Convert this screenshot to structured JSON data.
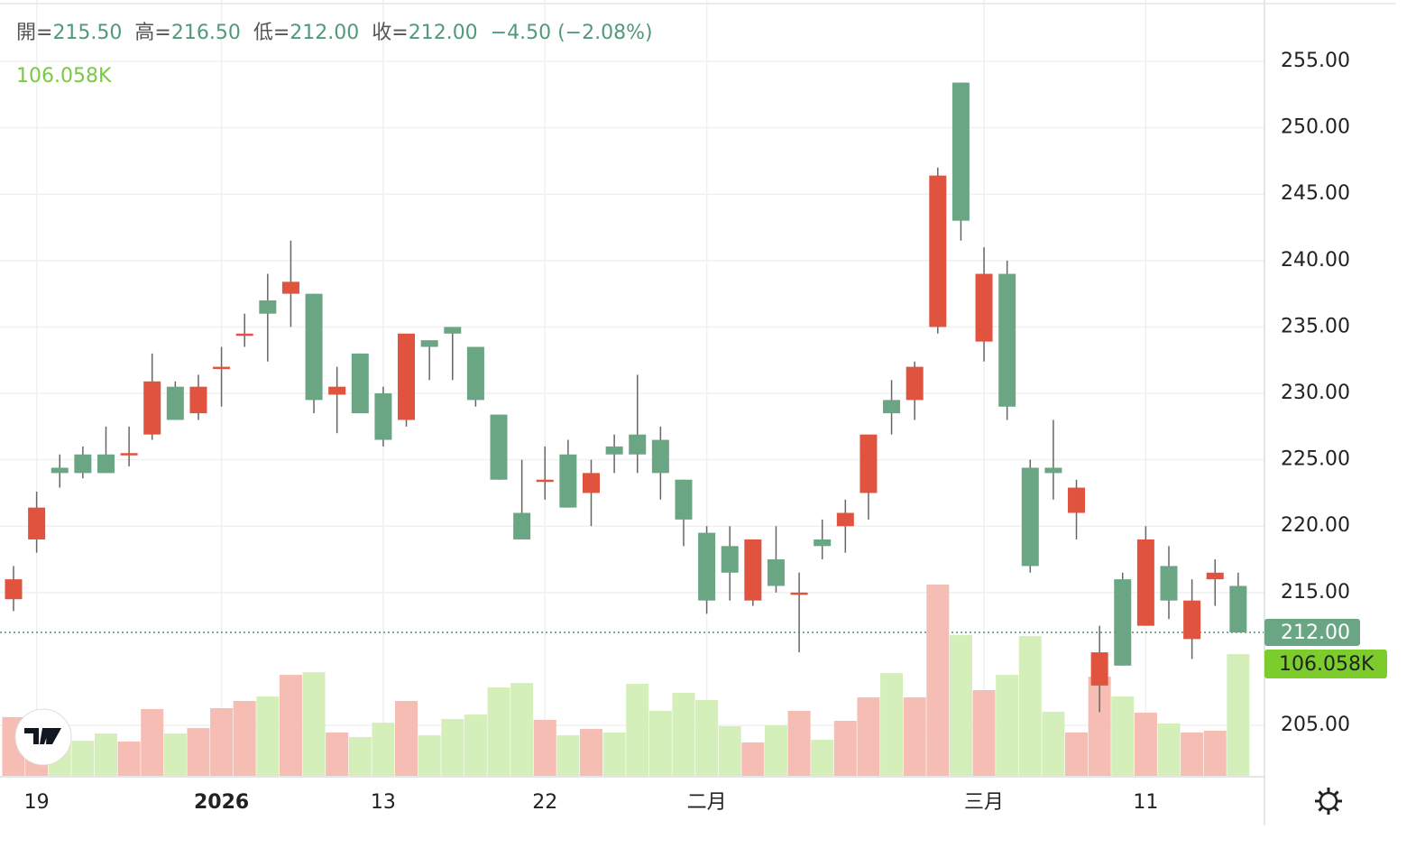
{
  "chart_data": {
    "type": "candlestick",
    "header": [
      {
        "label": "開=",
        "value": "215.50"
      },
      {
        "label": "高=",
        "value": "216.50"
      },
      {
        "label": "低=",
        "value": "212.00"
      },
      {
        "label": "收=",
        "value": "212.00"
      }
    ],
    "change": "−4.50 (−2.08%)",
    "volume_label": "106.058K",
    "categories": [
      null,
      "19",
      null,
      null,
      null,
      null,
      null,
      null,
      null,
      "2026",
      null,
      null,
      null,
      null,
      null,
      null,
      "13",
      null,
      null,
      null,
      null,
      null,
      null,
      "22",
      null,
      null,
      null,
      null,
      null,
      null,
      "二月",
      null,
      null,
      null,
      null,
      null,
      null,
      null,
      null,
      null,
      null,
      null,
      "三月",
      null,
      null,
      null,
      null,
      null,
      null,
      "11",
      null,
      null,
      null,
      null
    ],
    "open": [
      214.5,
      219.0,
      224.4,
      225.4,
      225.4,
      225.4,
      226.9,
      230.5,
      228.5,
      231.9,
      234.4,
      237.0,
      237.5,
      237.5,
      229.9,
      233.0,
      230.0,
      228.0,
      234.0,
      235.0,
      233.5,
      228.4,
      221.0,
      223.4,
      225.4,
      222.5,
      226.0,
      226.9,
      226.5,
      223.5,
      219.5,
      218.5,
      214.4,
      217.5,
      214.9,
      219.0,
      220.0,
      222.5,
      229.5,
      229.5,
      235.0,
      253.4,
      233.9,
      239.0,
      224.4,
      224.4,
      221.0,
      208.0,
      216.0,
      212.5,
      217.0,
      211.5,
      216.0,
      215.5
    ],
    "high": [
      217.0,
      222.6,
      225.4,
      226.0,
      227.5,
      227.5,
      233.0,
      230.9,
      231.4,
      233.5,
      236.0,
      239.0,
      241.5,
      237.5,
      232.0,
      233.0,
      230.5,
      234.5,
      234.0,
      235.0,
      233.5,
      228.4,
      225.0,
      226.0,
      226.5,
      225.0,
      226.9,
      231.4,
      227.5,
      223.5,
      220.0,
      220.0,
      219.0,
      220.0,
      216.5,
      220.5,
      222.0,
      226.9,
      231.0,
      232.4,
      247.0,
      253.4,
      241.0,
      240.0,
      225.0,
      228.0,
      223.5,
      212.5,
      216.5,
      220.0,
      218.5,
      216.0,
      217.5,
      216.5
    ],
    "low": [
      213.6,
      218.0,
      222.9,
      223.6,
      224.0,
      224.5,
      226.5,
      228.0,
      228.0,
      229.0,
      233.5,
      232.4,
      235.0,
      228.5,
      227.0,
      228.5,
      226.0,
      227.5,
      231.0,
      231.0,
      229.0,
      223.5,
      219.0,
      222.0,
      221.4,
      220.0,
      224.0,
      224.0,
      222.0,
      218.5,
      213.4,
      214.4,
      214.0,
      215.0,
      210.5,
      217.5,
      218.0,
      220.5,
      226.9,
      228.0,
      234.5,
      241.5,
      232.4,
      228.0,
      216.5,
      222.0,
      219.0,
      206.0,
      209.5,
      212.5,
      213.0,
      210.0,
      214.0,
      212.0
    ],
    "close": [
      216.0,
      221.4,
      224.0,
      224.0,
      224.0,
      225.5,
      230.9,
      228.0,
      230.5,
      232.0,
      234.5,
      236.0,
      238.4,
      229.5,
      230.5,
      228.5,
      226.5,
      234.5,
      233.5,
      234.5,
      229.5,
      223.5,
      219.0,
      223.5,
      221.4,
      224.0,
      225.4,
      225.4,
      224.0,
      220.5,
      214.4,
      216.5,
      219.0,
      215.5,
      215.0,
      218.5,
      221.0,
      226.9,
      228.5,
      232.0,
      246.4,
      243.0,
      239.0,
      229.0,
      217.0,
      224.0,
      222.9,
      210.5,
      209.5,
      219.0,
      214.4,
      214.4,
      216.5,
      212.0
    ],
    "volume": [
      51.1,
      23.6,
      29.9,
      30.6,
      36.9,
      29.9,
      58.1,
      36.9,
      41.6,
      58.9,
      65.2,
      69.1,
      87.9,
      90.3,
      37.7,
      33.8,
      46.3,
      65.2,
      35.3,
      49.5,
      53.4,
      77.0,
      80.9,
      48.7,
      35.3,
      40.8,
      37.7,
      80.1,
      56.6,
      72.3,
      66.0,
      43.2,
      29.1,
      44.0,
      56.6,
      31.4,
      47.9,
      68.3,
      89.5,
      68.3,
      166.5,
      122.5,
      74.6,
      87.9,
      121.8,
      55.8,
      37.7,
      86.4,
      69.1,
      55.0,
      45.6,
      37.7,
      39.3,
      106.058
    ],
    "up_color": "#e0533f",
    "down_color": "#6aa683",
    "volume_up_color": "#f5bdb4",
    "volume_down_color": "#d5efbb",
    "ylim": [
      201.2,
      259.62
    ],
    "yticks": [
      {
        "value": 205,
        "label": "205.00"
      },
      {
        "value": 215,
        "label": "215.00"
      },
      {
        "value": 220,
        "label": "220.00"
      },
      {
        "value": 225,
        "label": "225.00"
      },
      {
        "value": 230,
        "label": "230.00"
      },
      {
        "value": 235,
        "label": "235.00"
      },
      {
        "value": 240,
        "label": "240.00"
      },
      {
        "value": 245,
        "label": "245.00"
      },
      {
        "value": 250,
        "label": "250.00"
      },
      {
        "value": 255,
        "label": "255.00"
      }
    ],
    "last_price": {
      "value": 212,
      "label": "212.00"
    },
    "grid": true
  }
}
